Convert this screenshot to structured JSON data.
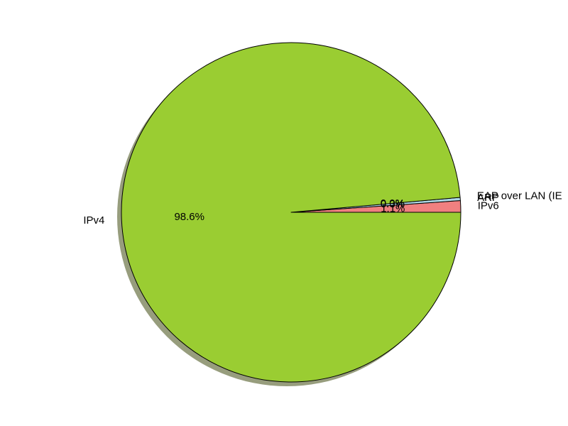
{
  "chart_data": {
    "type": "pie",
    "shadow": true,
    "start_angle_deg": 0,
    "direction": "counterclockwise",
    "slices": [
      {
        "label": "IPv6",
        "value": 1.1,
        "pct_label": "1.1%",
        "color": "#f08080"
      },
      {
        "label": "ARP",
        "value": 0.3,
        "pct_label": "0.3%",
        "color": "#add8e6"
      },
      {
        "label": "EAP over LAN (IE",
        "value": 0.0,
        "pct_label": "0.0%",
        "color": "#f0e68c"
      },
      {
        "label": "IPv4",
        "value": 98.6,
        "pct_label": "98.6%",
        "color": "#9acd32"
      }
    ],
    "edge_color": "#000000",
    "shadow_color": "#979d7d"
  }
}
